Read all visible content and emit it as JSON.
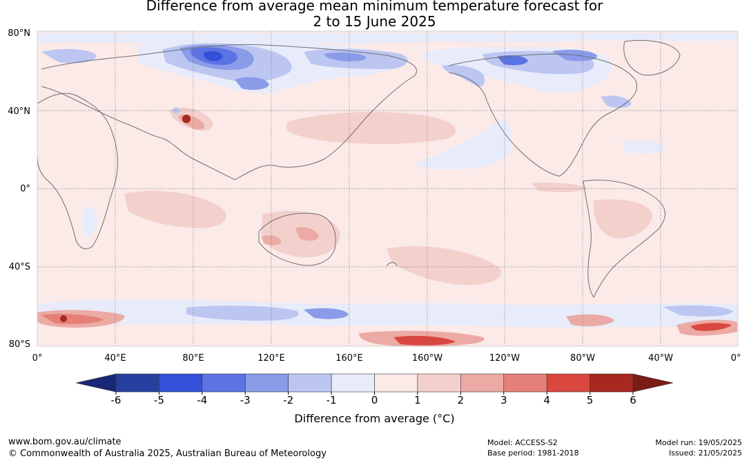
{
  "title": {
    "line1": "Difference from average mean minimum temperature forecast for",
    "line2": "2 to 15 June 2025"
  },
  "map": {
    "lat_labels": [
      "80°N",
      "40°N",
      "0°",
      "40°S",
      "80°S"
    ],
    "lon_labels": [
      "0°",
      "40°E",
      "80°E",
      "120°E",
      "160°E",
      "160°W",
      "120°W",
      "80°W",
      "40°W",
      "0°"
    ]
  },
  "colorbar": {
    "ticks": [
      "-6",
      "-5",
      "-4",
      "-3",
      "-2",
      "-1",
      "0",
      "1",
      "2",
      "3",
      "4",
      "5",
      "6"
    ],
    "colors": [
      "#26409f",
      "#3450d8",
      "#5b73e3",
      "#8a9be8",
      "#bcc6f1",
      "#e8ebfa",
      "#fbeae8",
      "#f3d0cc",
      "#ecaaa4",
      "#e58078",
      "#d9473e",
      "#a7281f"
    ],
    "low_color": "#1a2677",
    "high_color": "#7a1d16",
    "title": "Difference from average (°C)"
  },
  "footer": {
    "url": "www.bom.gov.au/climate",
    "copyright": "© Commonwealth of Australia 2025, Australian Bureau of Meteorology",
    "model": "Model: ACCESS-S2",
    "base_period": "Base period: 1981-2018",
    "model_run": "Model run: 19/05/2025",
    "issued": "Issued: 21/05/2025"
  }
}
